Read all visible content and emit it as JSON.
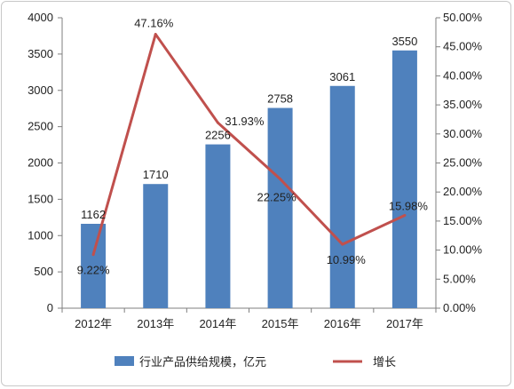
{
  "chart_data": {
    "type": "bar+line",
    "categories": [
      "2012年",
      "2013年",
      "2014年",
      "2015年",
      "2016年",
      "2017年"
    ],
    "series": [
      {
        "name": "行业产品供给规模，亿元",
        "type": "bar",
        "axis": "left",
        "color": "#4f81bd",
        "values": [
          1162,
          1710,
          2256,
          2758,
          3061,
          3550
        ],
        "labels": [
          "1162",
          "1710",
          "2256",
          "2758",
          "3061",
          "3550"
        ]
      },
      {
        "name": "增长",
        "type": "line",
        "axis": "right",
        "color": "#c0504d",
        "values": [
          9.22,
          47.16,
          31.93,
          22.25,
          10.99,
          15.98
        ],
        "labels": [
          "9.22%",
          "47.16%",
          "31.93%",
          "22.25%",
          "10.99%",
          "15.98%"
        ]
      }
    ],
    "y_left": {
      "ylim": [
        0,
        4000
      ],
      "ticks": [
        "0",
        "500",
        "1000",
        "1500",
        "2000",
        "2500",
        "3000",
        "3500",
        "4000"
      ]
    },
    "y_right": {
      "ylim": [
        0,
        50
      ],
      "ticks": [
        "0.00%",
        "5.00%",
        "10.00%",
        "15.00%",
        "20.00%",
        "25.00%",
        "30.00%",
        "35.00%",
        "40.00%",
        "45.00%",
        "50.00%"
      ]
    },
    "legend_position": "bottom",
    "grid": false
  }
}
